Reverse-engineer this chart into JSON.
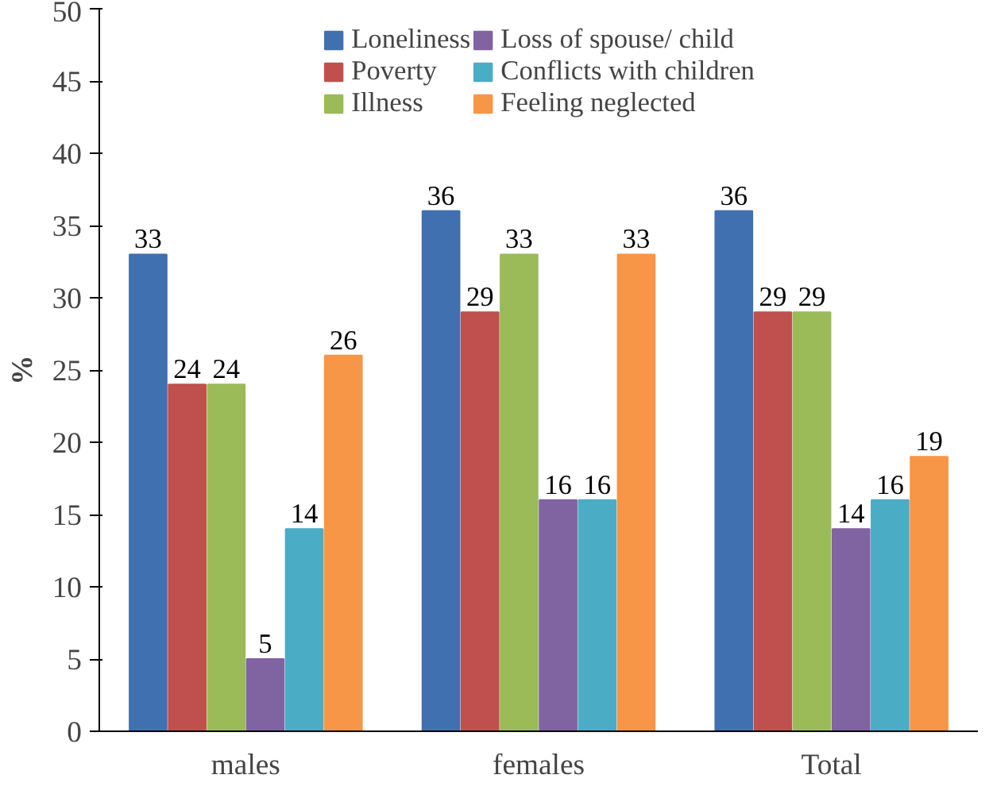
{
  "chart_data": {
    "type": "bar",
    "ylabel": "%",
    "categories": [
      "males",
      "females",
      "Total"
    ],
    "series": [
      {
        "name": "Loneliness",
        "color": "#4170b0",
        "values": [
          33,
          36,
          36
        ]
      },
      {
        "name": "Poverty",
        "color": "#c0504d",
        "values": [
          24,
          29,
          29
        ]
      },
      {
        "name": "Illness",
        "color": "#9bbb59",
        "values": [
          24,
          33,
          29
        ]
      },
      {
        "name": "Loss of spouse/ child",
        "color": "#8064a2",
        "values": [
          5,
          16,
          14
        ]
      },
      {
        "name": "Conflicts with children",
        "color": "#4bacc6",
        "values": [
          14,
          16,
          16
        ]
      },
      {
        "name": "Feeling neglected",
        "color": "#f79646",
        "values": [
          26,
          33,
          19
        ]
      }
    ],
    "ylim": [
      0,
      50
    ],
    "yticks": [
      0,
      5,
      10,
      15,
      20,
      25,
      30,
      35,
      40,
      45,
      50
    ],
    "data_labels": true,
    "legend": "top",
    "grid": false
  }
}
